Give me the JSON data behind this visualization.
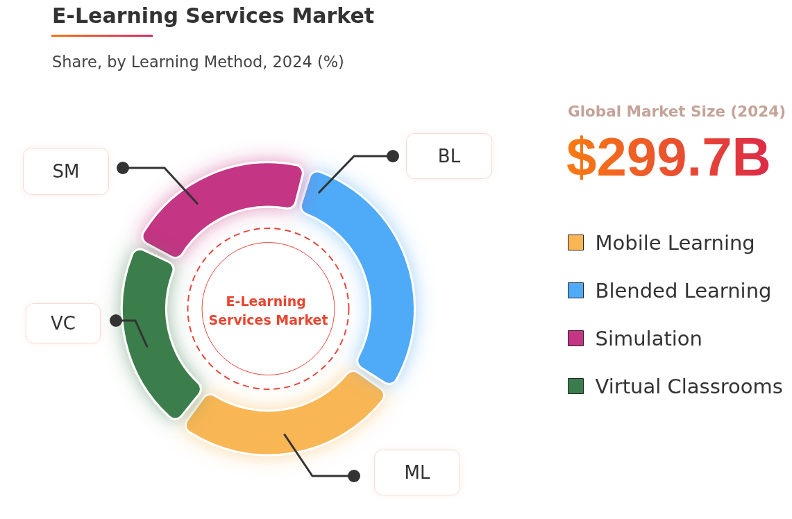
{
  "chart_data": {
    "type": "donut",
    "title": "E-Learning Services Market",
    "subtitle": "Share, by Learning Method, 2024 (%)",
    "categories": [
      "Mobile Learning",
      "Blended Learning",
      "Simulation",
      "Virtual Classrooms"
    ],
    "values": [
      26,
      30,
      22,
      22
    ],
    "colors": [
      "#f9b655",
      "#4faaf7",
      "#c43583",
      "#3a7d4c"
    ],
    "legend": "right",
    "annotations": [
      {
        "text": "ML",
        "x": "Mobile Learning"
      },
      {
        "text": "BL",
        "x": "Blended Learning"
      },
      {
        "text": "SM",
        "x": "Simulation"
      },
      {
        "text": "VC",
        "x": "Virtual Classrooms"
      },
      "E-Learning Services Market",
      "Global Market Size (2024)",
      "$299.7B"
    ]
  }
}
